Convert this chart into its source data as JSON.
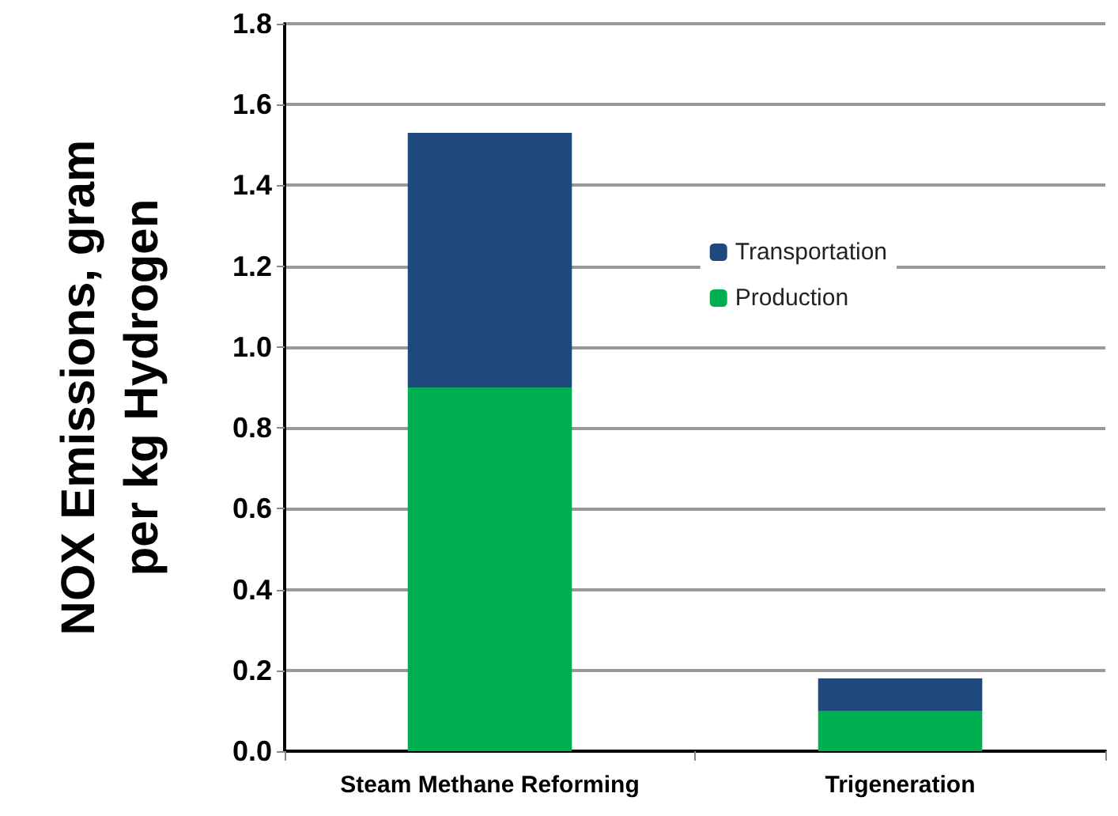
{
  "chart_data": {
    "type": "bar",
    "ylabel": "NOX Emissions, gram per kg Hydrogen",
    "categories": [
      "Steam Methane Reforming",
      "Trigeneration"
    ],
    "series": [
      {
        "name": "Production",
        "color": "#00b050",
        "values": [
          0.9,
          0.1
        ]
      },
      {
        "name": "Transportation",
        "color": "#1f497d",
        "values": [
          0.63,
          0.08
        ]
      }
    ],
    "stacked": true,
    "ylim": [
      0,
      1.8
    ],
    "yticks": [
      {
        "value": 0,
        "label": "0.0"
      },
      {
        "value": 0.2,
        "label": "0.2"
      },
      {
        "value": 0.4,
        "label": "0.4"
      },
      {
        "value": 0.6,
        "label": "0.6"
      },
      {
        "value": 0.8,
        "label": "0.8"
      },
      {
        "value": 1.0,
        "label": "1.0"
      },
      {
        "value": 1.2,
        "label": "1.2"
      },
      {
        "value": 1.4,
        "label": "1.4"
      },
      {
        "value": 1.6,
        "label": "1.6"
      },
      {
        "value": 1.8,
        "label": "1.8"
      }
    ],
    "grid": "y",
    "legend": "right"
  }
}
